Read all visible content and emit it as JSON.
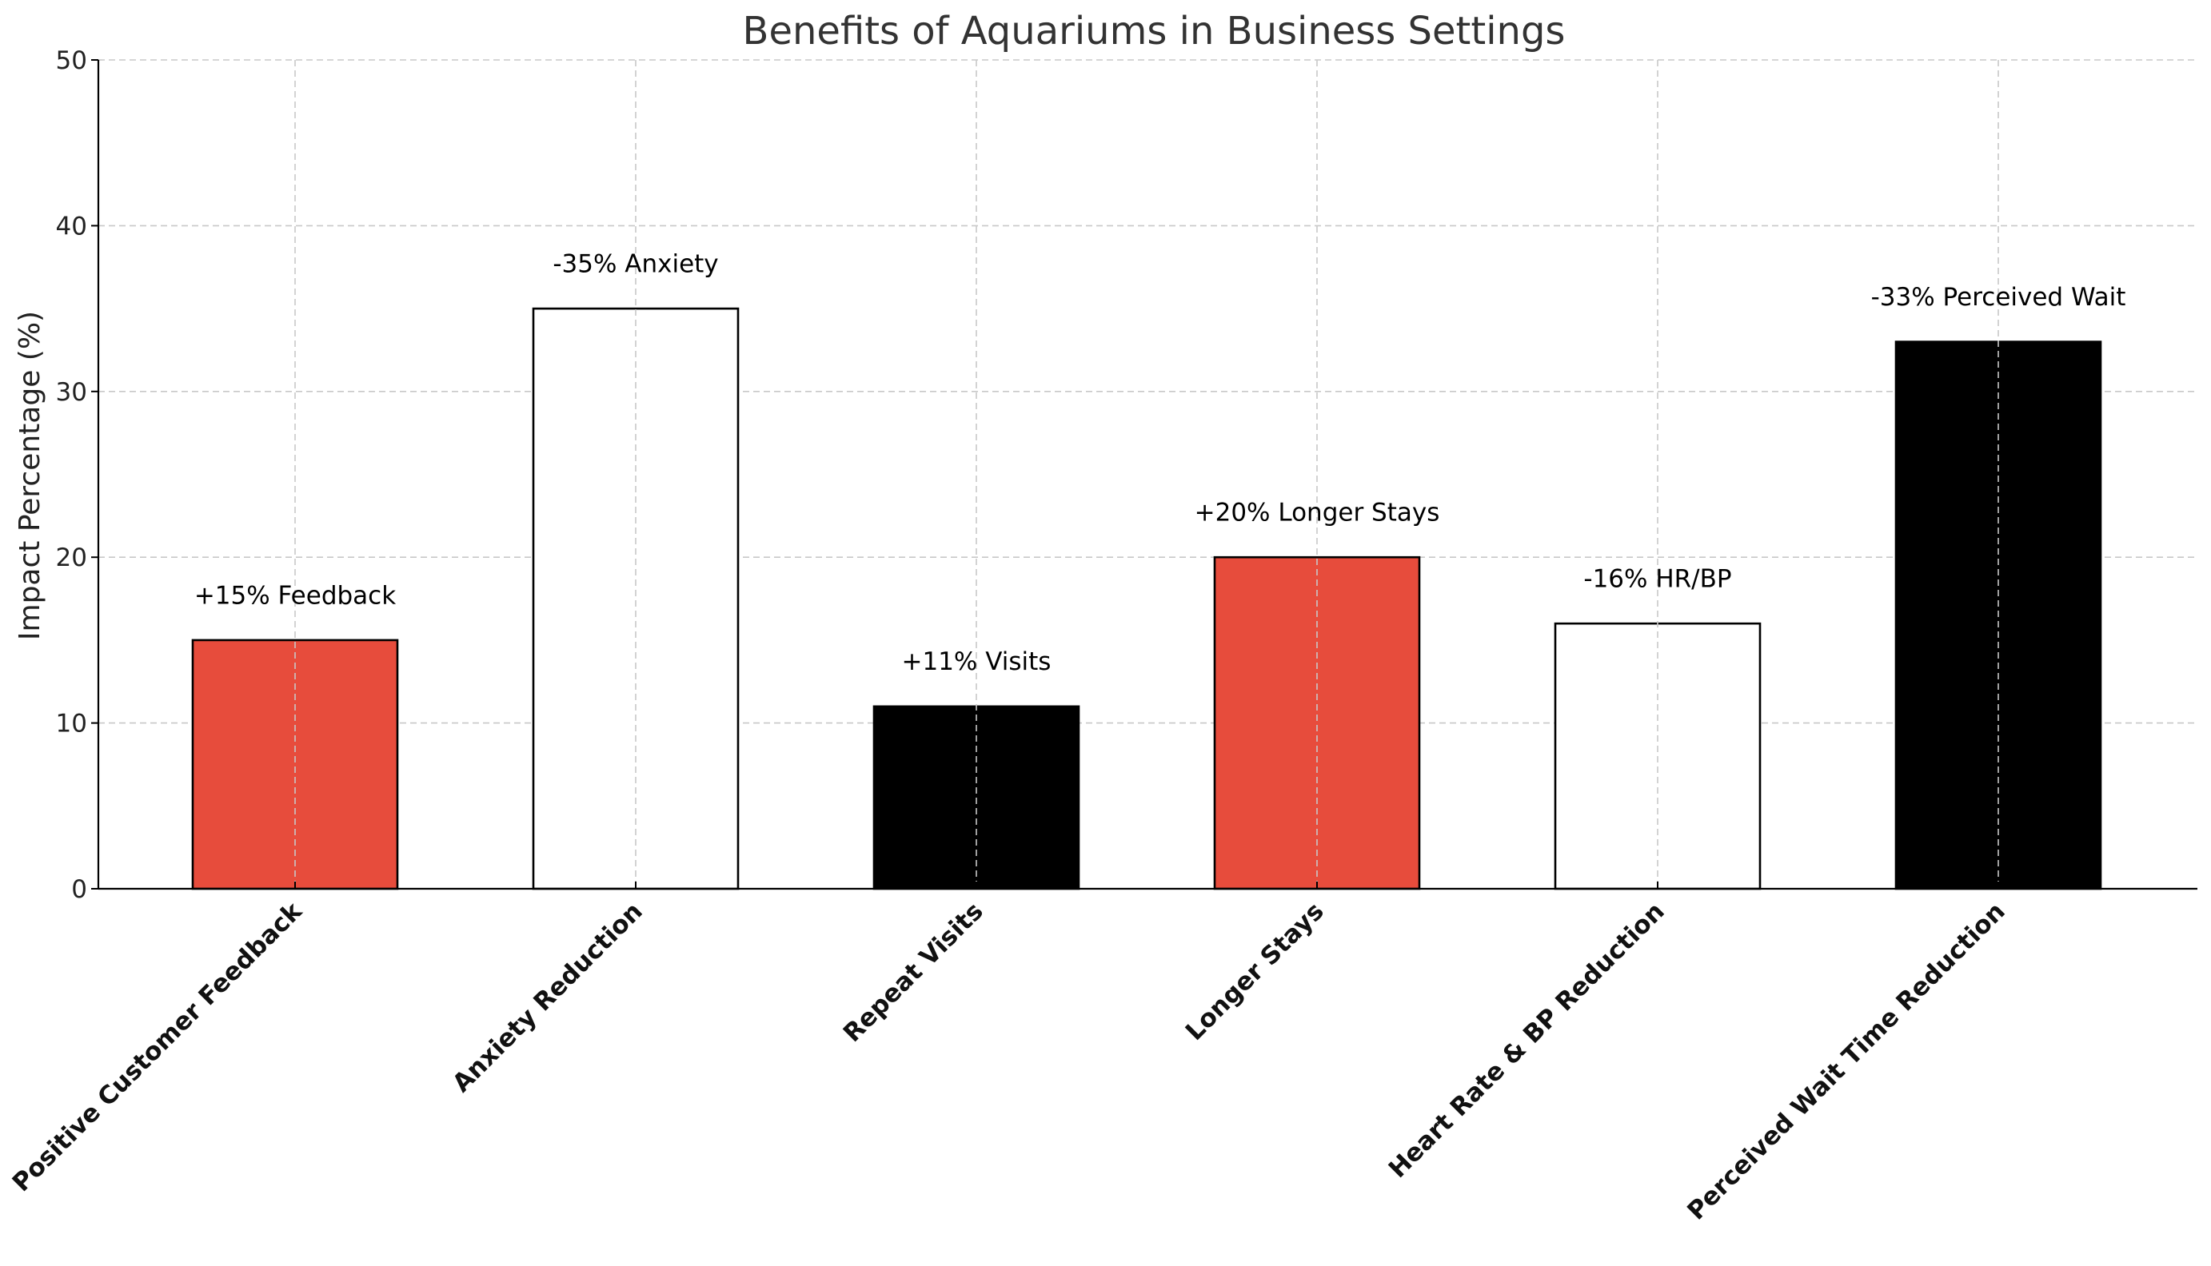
{
  "chart_data": {
    "type": "bar",
    "title": "Benefits of Aquariums in Business Settings",
    "xlabel": "",
    "ylabel": "Impact Percentage (%)",
    "ylim": [
      0,
      50
    ],
    "yticks": [
      0,
      10,
      20,
      30,
      40,
      50
    ],
    "grid": true,
    "categories": [
      "Positive Customer Feedback",
      "Anxiety Reduction",
      "Repeat Visits",
      "Longer Stays",
      "Heart Rate & BP Reduction",
      "Perceived Wait Time Reduction"
    ],
    "values": [
      15,
      35,
      11,
      20,
      16,
      33
    ],
    "bar_labels": [
      "+15% Feedback",
      "-35% Anxiety",
      "+11% Visits",
      "+20% Longer Stays",
      "-16% HR/BP",
      "-33% Perceived Wait"
    ],
    "bar_colors": [
      "#e74c3c",
      "#ffffff",
      "#000000",
      "#e74c3c",
      "#ffffff",
      "#000000"
    ]
  }
}
